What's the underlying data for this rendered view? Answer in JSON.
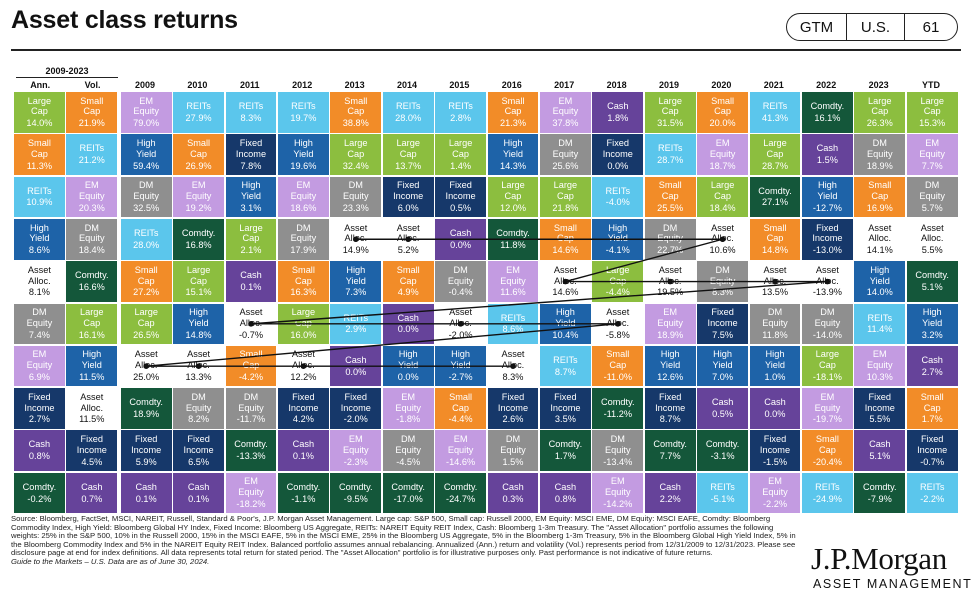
{
  "header": {
    "title": "Asset class returns",
    "badges": [
      "GTM",
      "U.S.",
      "61"
    ]
  },
  "period": {
    "label": "2009-2023",
    "columns": [
      "Ann.",
      "Vol."
    ]
  },
  "columns": [
    "2009",
    "2010",
    "2011",
    "2012",
    "2013",
    "2014",
    "2015",
    "2016",
    "2017",
    "2018",
    "2019",
    "2020",
    "2021",
    "2022",
    "2023",
    "YTD"
  ],
  "colors": {
    "Large Cap": "#8CBE3F",
    "Small Cap": "#F28C28",
    "EM Equity": "#C39BE1",
    "REITs": "#5BC6EC",
    "High Yield": "#1E63A8",
    "DM Equity": "#8F8F8F",
    "Fixed Income": "#16386A",
    "Asset Alloc.": "#FFFFFF",
    "Cash": "#66439A",
    "Comdty.": "#14573A"
  },
  "chart_data": {
    "type": "table",
    "title": "Asset class returns",
    "columns": [
      "Ann.",
      "Vol.",
      "2009",
      "2010",
      "2011",
      "2012",
      "2013",
      "2014",
      "2015",
      "2016",
      "2017",
      "2018",
      "2019",
      "2020",
      "2021",
      "2022",
      "2023",
      "YTD"
    ],
    "highlight_series": "Asset Alloc.",
    "rows": [
      [
        [
          "Large Cap",
          "14.0%"
        ],
        [
          "Small Cap",
          "21.9%"
        ],
        [
          "EM Equity",
          "79.0%"
        ],
        [
          "REITs",
          "27.9%"
        ],
        [
          "REITs",
          "8.3%"
        ],
        [
          "REITs",
          "19.7%"
        ],
        [
          "Small Cap",
          "38.8%"
        ],
        [
          "REITs",
          "28.0%"
        ],
        [
          "REITs",
          "2.8%"
        ],
        [
          "Small Cap",
          "21.3%"
        ],
        [
          "EM Equity",
          "37.8%"
        ],
        [
          "Cash",
          "1.8%"
        ],
        [
          "Large Cap",
          "31.5%"
        ],
        [
          "Small Cap",
          "20.0%"
        ],
        [
          "REITs",
          "41.3%"
        ],
        [
          "Comdty.",
          "16.1%"
        ],
        [
          "Large Cap",
          "26.3%"
        ],
        [
          "Large Cap",
          "15.3%"
        ]
      ],
      [
        [
          "Small Cap",
          "11.3%"
        ],
        [
          "REITs",
          "21.2%"
        ],
        [
          "High Yield",
          "59.4%"
        ],
        [
          "Small Cap",
          "26.9%"
        ],
        [
          "Fixed Income",
          "7.8%"
        ],
        [
          "High Yield",
          "19.6%"
        ],
        [
          "Large Cap",
          "32.4%"
        ],
        [
          "Large Cap",
          "13.7%"
        ],
        [
          "Large Cap",
          "1.4%"
        ],
        [
          "High Yield",
          "14.3%"
        ],
        [
          "DM Equity",
          "25.6%"
        ],
        [
          "Fixed Income",
          "0.0%"
        ],
        [
          "REITs",
          "28.7%"
        ],
        [
          "EM Equity",
          "18.7%"
        ],
        [
          "Large Cap",
          "28.7%"
        ],
        [
          "Cash",
          "1.5%"
        ],
        [
          "DM Equity",
          "18.9%"
        ],
        [
          "EM Equity",
          "7.7%"
        ]
      ],
      [
        [
          "REITs",
          "10.9%"
        ],
        [
          "EM Equity",
          "20.3%"
        ],
        [
          "DM Equity",
          "32.5%"
        ],
        [
          "EM Equity",
          "19.2%"
        ],
        [
          "High Yield",
          "3.1%"
        ],
        [
          "EM Equity",
          "18.6%"
        ],
        [
          "DM Equity",
          "23.3%"
        ],
        [
          "Fixed Income",
          "6.0%"
        ],
        [
          "Fixed Income",
          "0.5%"
        ],
        [
          "Large Cap",
          "12.0%"
        ],
        [
          "Large Cap",
          "21.8%"
        ],
        [
          "REITs",
          "-4.0%"
        ],
        [
          "Small Cap",
          "25.5%"
        ],
        [
          "Large Cap",
          "18.4%"
        ],
        [
          "Comdty.",
          "27.1%"
        ],
        [
          "High Yield",
          "-12.7%"
        ],
        [
          "Small Cap",
          "16.9%"
        ],
        [
          "DM Equity",
          "5.7%"
        ]
      ],
      [
        [
          "High Yield",
          "8.6%"
        ],
        [
          "DM Equity",
          "18.4%"
        ],
        [
          "REITs",
          "28.0%"
        ],
        [
          "Comdty.",
          "16.8%"
        ],
        [
          "Large Cap",
          "2.1%"
        ],
        [
          "DM Equity",
          "17.9%"
        ],
        [
          "Asset Alloc.",
          "14.9%"
        ],
        [
          "Asset Alloc.",
          "5.2%"
        ],
        [
          "Cash",
          "0.0%"
        ],
        [
          "Comdty.",
          "11.8%"
        ],
        [
          "Small Cap",
          "14.6%"
        ],
        [
          "High Yield",
          "-4.1%"
        ],
        [
          "DM Equity",
          "22.7%"
        ],
        [
          "Asset Alloc.",
          "10.6%"
        ],
        [
          "Small Cap",
          "14.8%"
        ],
        [
          "Fixed Income",
          "-13.0%"
        ],
        [
          "Asset Alloc.",
          "14.1%"
        ],
        [
          "Asset Alloc.",
          "5.5%"
        ]
      ],
      [
        [
          "Asset Alloc.",
          "8.1%"
        ],
        [
          "Comdty.",
          "16.6%"
        ],
        [
          "Small Cap",
          "27.2%"
        ],
        [
          "Large Cap",
          "15.1%"
        ],
        [
          "Cash",
          "0.1%"
        ],
        [
          "Small Cap",
          "16.3%"
        ],
        [
          "High Yield",
          "7.3%"
        ],
        [
          "Small Cap",
          "4.9%"
        ],
        [
          "DM Equity",
          "-0.4%"
        ],
        [
          "EM Equity",
          "11.6%"
        ],
        [
          "Asset Alloc.",
          "14.6%"
        ],
        [
          "Large Cap",
          "-4.4%"
        ],
        [
          "Asset Alloc.",
          "19.5%"
        ],
        [
          "DM Equity",
          "8.3%"
        ],
        [
          "Asset Alloc.",
          "13.5%"
        ],
        [
          "Asset Alloc.",
          "-13.9%"
        ],
        [
          "High Yield",
          "14.0%"
        ],
        [
          "Comdty.",
          "5.1%"
        ]
      ],
      [
        [
          "DM Equity",
          "7.4%"
        ],
        [
          "Large Cap",
          "16.1%"
        ],
        [
          "Large Cap",
          "26.5%"
        ],
        [
          "High Yield",
          "14.8%"
        ],
        [
          "Asset Alloc.",
          "-0.7%"
        ],
        [
          "Large Cap",
          "16.0%"
        ],
        [
          "REITs",
          "2.9%"
        ],
        [
          "Cash",
          "0.0%"
        ],
        [
          "Asset Alloc.",
          "-2.0%"
        ],
        [
          "REITs",
          "8.6%"
        ],
        [
          "High Yield",
          "10.4%"
        ],
        [
          "Asset Alloc.",
          "-5.8%"
        ],
        [
          "EM Equity",
          "18.9%"
        ],
        [
          "Fixed Income",
          "7.5%"
        ],
        [
          "DM Equity",
          "11.8%"
        ],
        [
          "DM Equity",
          "-14.0%"
        ],
        [
          "REITs",
          "11.4%"
        ],
        [
          "High Yield",
          "3.2%"
        ]
      ],
      [
        [
          "EM Equity",
          "6.9%"
        ],
        [
          "High Yield",
          "11.5%"
        ],
        [
          "Asset Alloc.",
          "25.0%"
        ],
        [
          "Asset Alloc.",
          "13.3%"
        ],
        [
          "Small Cap",
          "-4.2%"
        ],
        [
          "Asset Alloc.",
          "12.2%"
        ],
        [
          "Cash",
          "0.0%"
        ],
        [
          "High Yield",
          "0.0%"
        ],
        [
          "High Yield",
          "-2.7%"
        ],
        [
          "Asset Alloc.",
          "8.3%"
        ],
        [
          "REITs",
          "8.7%"
        ],
        [
          "Small Cap",
          "-11.0%"
        ],
        [
          "High Yield",
          "12.6%"
        ],
        [
          "High Yield",
          "7.0%"
        ],
        [
          "High Yield",
          "1.0%"
        ],
        [
          "Large Cap",
          "-18.1%"
        ],
        [
          "EM Equity",
          "10.3%"
        ],
        [
          "Cash",
          "2.7%"
        ]
      ],
      [
        [
          "Fixed Income",
          "2.7%"
        ],
        [
          "Asset Alloc.",
          "11.5%"
        ],
        [
          "Comdty.",
          "18.9%"
        ],
        [
          "DM Equity",
          "8.2%"
        ],
        [
          "DM Equity",
          "-11.7%"
        ],
        [
          "Fixed Income",
          "4.2%"
        ],
        [
          "Fixed Income",
          "-2.0%"
        ],
        [
          "EM Equity",
          "-1.8%"
        ],
        [
          "Small Cap",
          "-4.4%"
        ],
        [
          "Fixed Income",
          "2.6%"
        ],
        [
          "Fixed Income",
          "3.5%"
        ],
        [
          "Comdty.",
          "-11.2%"
        ],
        [
          "Fixed Income",
          "8.7%"
        ],
        [
          "Cash",
          "0.5%"
        ],
        [
          "Cash",
          "0.0%"
        ],
        [
          "EM Equity",
          "-19.7%"
        ],
        [
          "Fixed Income",
          "5.5%"
        ],
        [
          "Small Cap",
          "1.7%"
        ]
      ],
      [
        [
          "Cash",
          "0.8%"
        ],
        [
          "Fixed Income",
          "4.5%"
        ],
        [
          "Fixed Income",
          "5.9%"
        ],
        [
          "Fixed Income",
          "6.5%"
        ],
        [
          "Comdty.",
          "-13.3%"
        ],
        [
          "Cash",
          "0.1%"
        ],
        [
          "EM Equity",
          "-2.3%"
        ],
        [
          "DM Equity",
          "-4.5%"
        ],
        [
          "EM Equity",
          "-14.6%"
        ],
        [
          "DM Equity",
          "1.5%"
        ],
        [
          "Comdty.",
          "1.7%"
        ],
        [
          "DM Equity",
          "-13.4%"
        ],
        [
          "Comdty.",
          "7.7%"
        ],
        [
          "Comdty.",
          "-3.1%"
        ],
        [
          "Fixed Income",
          "-1.5%"
        ],
        [
          "Small Cap",
          "-20.4%"
        ],
        [
          "Cash",
          "5.1%"
        ],
        [
          "Fixed Income",
          "-0.7%"
        ]
      ],
      [
        [
          "Comdty.",
          "-0.2%"
        ],
        [
          "Cash",
          "0.7%"
        ],
        [
          "Cash",
          "0.1%"
        ],
        [
          "Cash",
          "0.1%"
        ],
        [
          "EM Equity",
          "-18.2%"
        ],
        [
          "Comdty.",
          "-1.1%"
        ],
        [
          "Comdty.",
          "-9.5%"
        ],
        [
          "Comdty.",
          "-17.0%"
        ],
        [
          "Comdty.",
          "-24.7%"
        ],
        [
          "Cash",
          "0.3%"
        ],
        [
          "Cash",
          "0.8%"
        ],
        [
          "EM Equity",
          "-14.2%"
        ],
        [
          "Cash",
          "2.2%"
        ],
        [
          "REITs",
          "-5.1%"
        ],
        [
          "EM Equity",
          "-2.2%"
        ],
        [
          "REITs",
          "-24.9%"
        ],
        [
          "Comdty.",
          "-7.9%"
        ],
        [
          "REITs",
          "-2.2%"
        ]
      ]
    ]
  },
  "footnote": {
    "text": "Source: Bloomberg, FactSet, MSCI, NAREIT, Russell, Standard & Poor's, J.P. Morgan Asset Management. Large cap: S&P 500, Small cap: Russell 2000, EM Equity: MSCI EME, DM Equity: MSCI EAFE, Comdty: Bloomberg Commodity Index, High Yield: Bloomberg Global HY Index, Fixed Income: Bloomberg US Aggregate, REITs: NAREIT Equity REIT Index, Cash: Bloomberg 1-3m Treasury. The \"Asset Allocation\" portfolio assumes the following weights: 25% in the S&P 500, 10% in the Russell 2000, 15% in the MSCI EAFE, 5% in the MSCI EME, 25% in the Bloomberg US Aggregate, 5% in the Bloomberg 1-3m Treasury, 5% in the Bloomberg Global High Yield Index, 5% in the Bloomberg Commodity Index and 5% in the NAREIT Equity REIT Index. Balanced portfolio assumes annual rebalancing. Annualized (Ann.) return and volatility (Vol.) represents period from 12/31/2009 to 12/31/2023. Please see disclosure page at end for index definitions. All data represents total return for stated period. The \"Asset Allocation\" portfolio is for illustrative purposes only. Past performance is not indicative of future returns.",
    "guide": "Guide to the Markets – U.S. Data are as of June 30, 2024."
  },
  "logo": {
    "main": "J.P.Morgan",
    "sub": "ASSET MANAGEMENT"
  }
}
